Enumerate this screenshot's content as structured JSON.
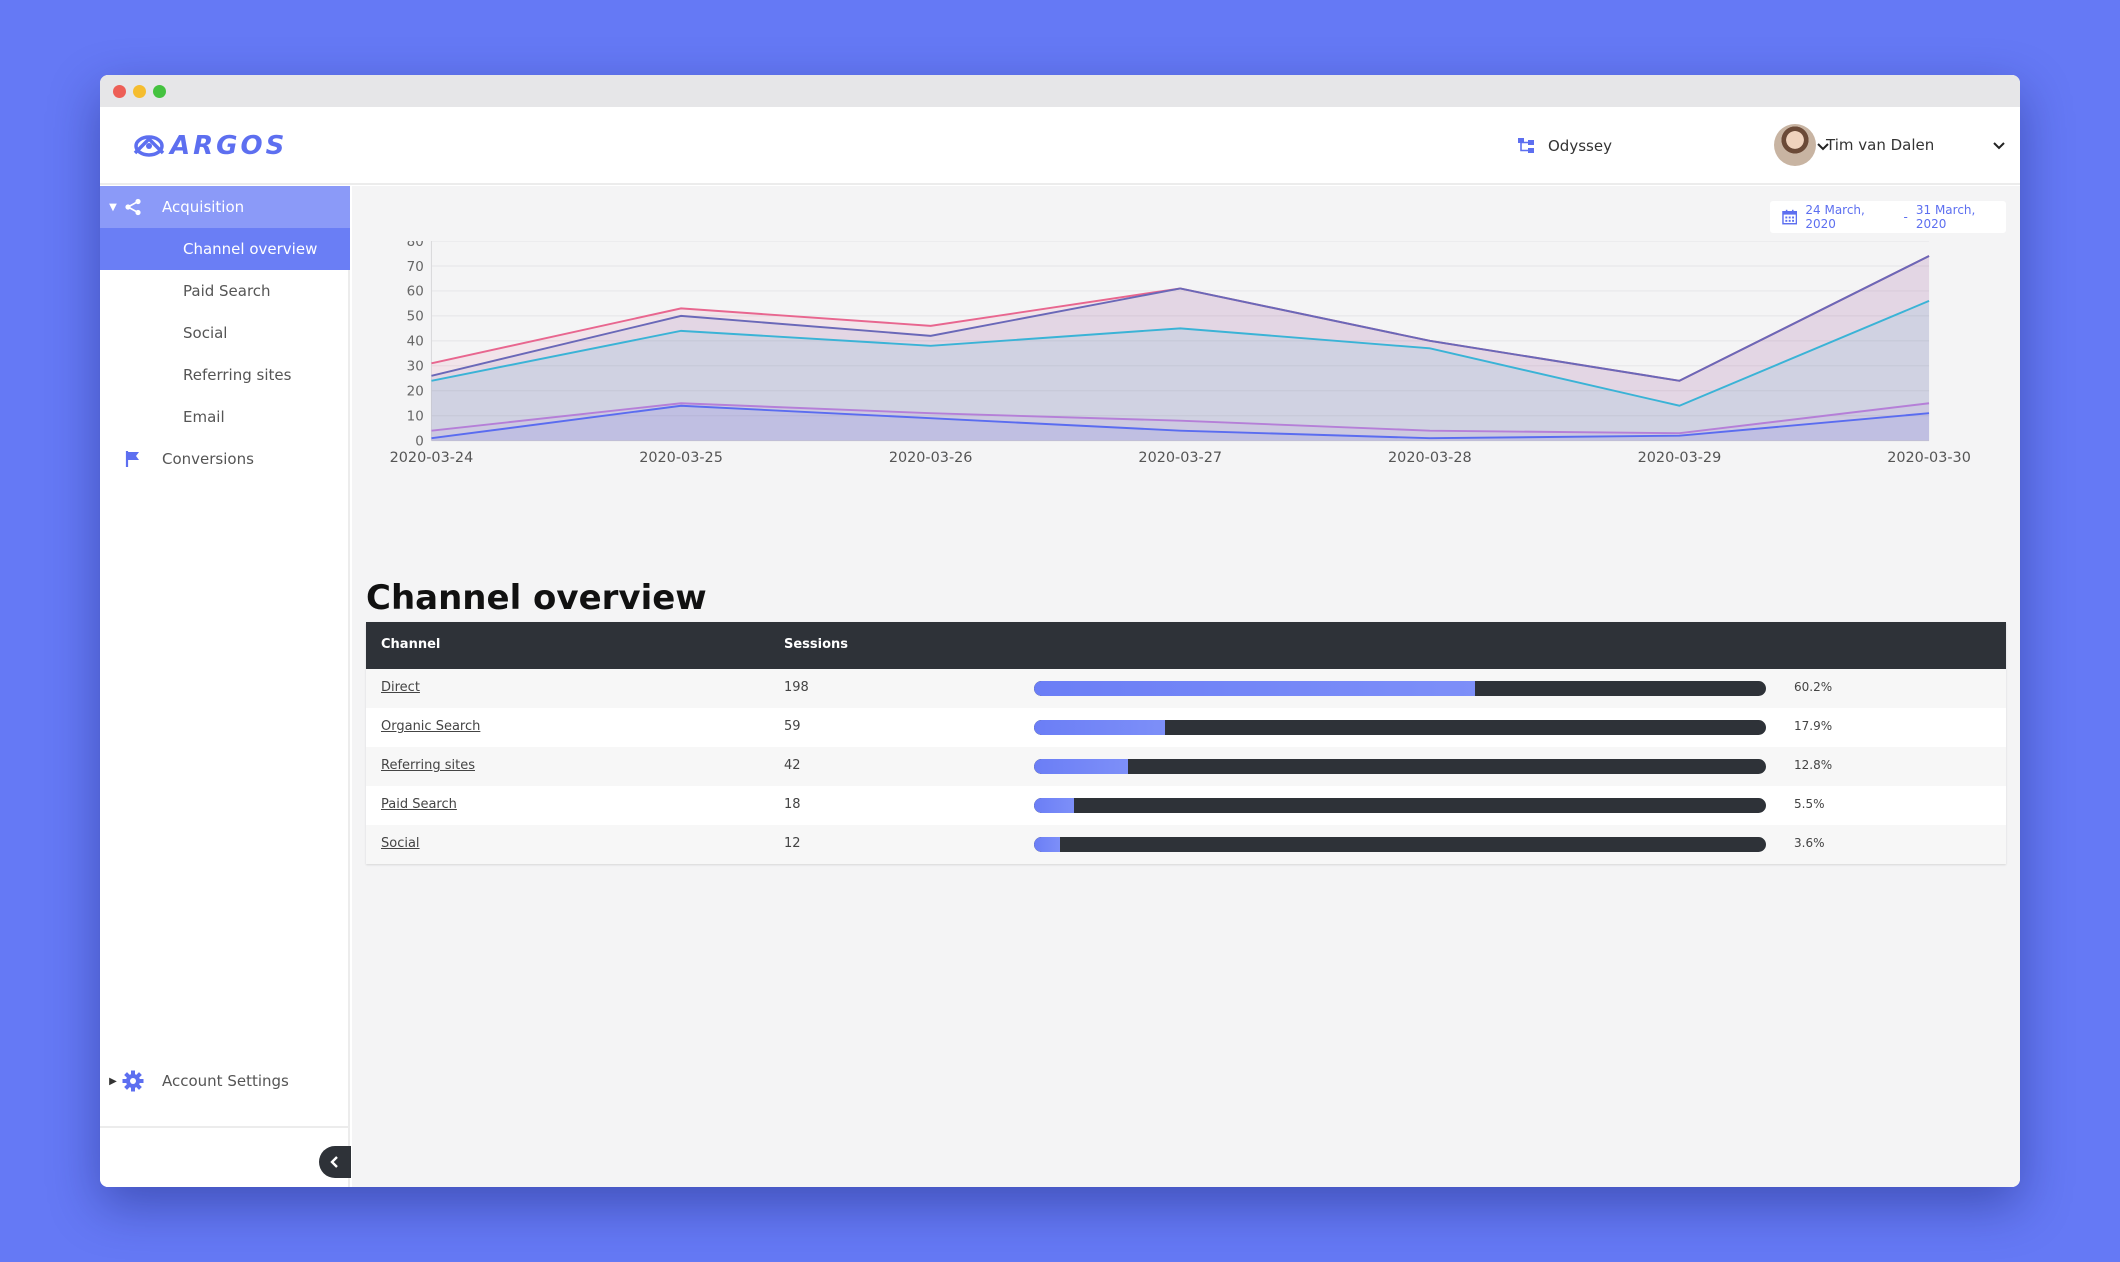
{
  "header": {
    "logo_text": "ARGOS",
    "project": "Odyssey",
    "user": "Tim van Dalen"
  },
  "sidebar": {
    "items": [
      {
        "label": "Acquisition",
        "icon": "share-icon"
      },
      {
        "label": "Channel overview"
      },
      {
        "label": "Paid Search"
      },
      {
        "label": "Social"
      },
      {
        "label": "Referring sites"
      },
      {
        "label": "Email"
      },
      {
        "label": "Conversions",
        "icon": "flag-icon"
      }
    ],
    "settings_label": "Account Settings"
  },
  "date_range": {
    "start": "24 March, 2020",
    "separator": "-",
    "end": "31 March, 2020"
  },
  "section_title": "Channel overview",
  "colors": {
    "accent": "#6a7ef5",
    "dark": "#2e3238",
    "background": "#6579f5"
  },
  "chart_data": {
    "type": "area",
    "x": [
      "2020-03-24",
      "2020-03-25",
      "2020-03-26",
      "2020-03-27",
      "2020-03-28",
      "2020-03-29",
      "2020-03-30"
    ],
    "ylim": [
      0,
      80
    ],
    "yticks": [
      0,
      10,
      20,
      30,
      40,
      50,
      60,
      70,
      80
    ],
    "grid": true,
    "series": [
      {
        "values": [
          31,
          53,
          46,
          61,
          40,
          24,
          74
        ],
        "color": "#e8668f"
      },
      {
        "values": [
          26,
          50,
          42,
          61,
          40,
          24,
          74
        ],
        "color": "#6a68b8"
      },
      {
        "values": [
          24,
          44,
          38,
          45,
          37,
          14,
          56
        ],
        "color": "#3ab3d6"
      },
      {
        "values": [
          4,
          15,
          11,
          8,
          4,
          3,
          15
        ],
        "color": "#b57fd8"
      },
      {
        "values": [
          1,
          14,
          9,
          4,
          1,
          2,
          11
        ],
        "color": "#5a6cf0"
      }
    ]
  },
  "table": {
    "headers": [
      "Channel",
      "Sessions"
    ],
    "rows": [
      {
        "channel": "Direct",
        "sessions": "198",
        "pct_label": "60.2%",
        "pct": 60.2
      },
      {
        "channel": "Organic Search",
        "sessions": "59",
        "pct_label": "17.9%",
        "pct": 17.9
      },
      {
        "channel": "Referring sites",
        "sessions": "42",
        "pct_label": "12.8%",
        "pct": 12.8
      },
      {
        "channel": "Paid Search",
        "sessions": "18",
        "pct_label": "5.5%",
        "pct": 5.5
      },
      {
        "channel": "Social",
        "sessions": "12",
        "pct_label": "3.6%",
        "pct": 3.6
      }
    ]
  }
}
